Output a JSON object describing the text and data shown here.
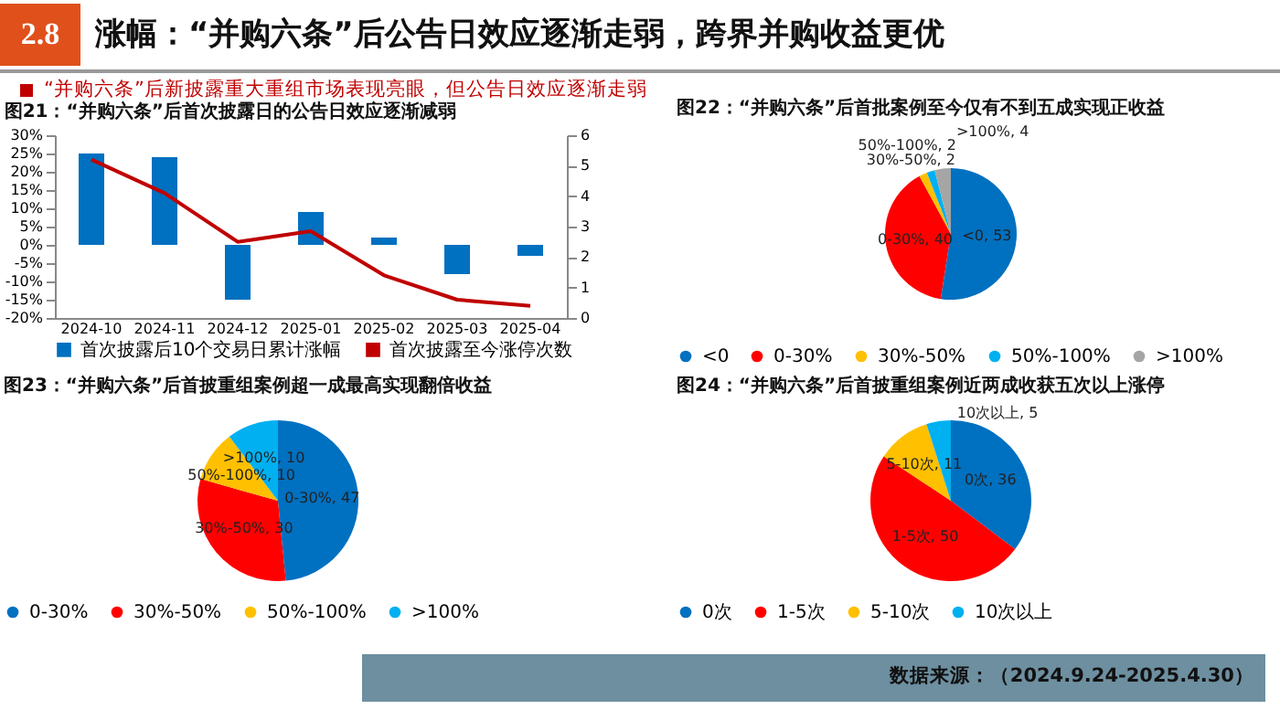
{
  "chart_data": [
    {
      "type": "other",
      "title": "涨幅：“并购六条”后公告日效应逐渐走弱，跨界并购收益更优",
      "subtitle": "“并购六条”后新披露重大重组市场表现亮眼，但公告日效应逐渐走弱",
      "annotations": [
        "2.8",
        "数据来源：（2024.9.24-2025.4.30）"
      ]
    },
    {
      "type": "bar",
      "title": "图21：“并购六条”后首次披露日的公告日效应逐渐减弱",
      "categories": [
        "2024-10",
        "2024-11",
        "2024-12",
        "2025-01",
        "2025-02",
        "2025-03",
        "2025-04"
      ],
      "series": [
        {
          "name": "首次披露后10个交易日累计涨幅",
          "type": "bar",
          "color": "#0070c0",
          "values": [
            25,
            24,
            -15,
            9,
            2,
            -8,
            -3
          ]
        },
        {
          "name": "首次披露至今涨停次数",
          "type": "line",
          "axis": "y2",
          "color": "#c00000",
          "values": [
            5.2,
            4.1,
            2.5,
            2.85,
            1.4,
            0.6,
            0.4
          ]
        }
      ],
      "ylim": [
        -20,
        30
      ],
      "yticks": [
        {
          "value": -20,
          "label": "-20%"
        },
        {
          "value": -15,
          "label": "-15%"
        },
        {
          "value": -10,
          "label": "-10%"
        },
        {
          "value": -5,
          "label": "-5%"
        },
        {
          "value": 0,
          "label": "0%"
        },
        {
          "value": 5,
          "label": "5%"
        },
        {
          "value": 10,
          "label": "10%"
        },
        {
          "value": 15,
          "label": "15%"
        },
        {
          "value": 20,
          "label": "20%"
        },
        {
          "value": 25,
          "label": "25%"
        },
        {
          "value": 30,
          "label": "30%"
        }
      ],
      "y2lim": [
        0,
        6
      ],
      "y2ticks": [
        0,
        1,
        2,
        3,
        4,
        5,
        6
      ],
      "legend": "bottom"
    },
    {
      "type": "pie",
      "title": "图22：“并购六条”后首批案例至今仅有不到五成实现正收益",
      "categories": [
        "<0",
        "0-30%",
        "30%-50%",
        "50%-100%",
        ">100%"
      ],
      "values": [
        53,
        40,
        2,
        2,
        4
      ],
      "colors": [
        "#0070c0",
        "#ff0000",
        "#ffc000",
        "#00b0f0",
        "#a5a5a5"
      ],
      "value_labels": [
        "<0, 53",
        "0-30%, 40",
        "30%-50%, 2",
        "50%-100%, 2",
        ">100%, 4"
      ],
      "legend": "bottom"
    },
    {
      "type": "pie",
      "title": "图23：“并购六条”后首披重组案例超一成最高实现翻倍收益",
      "categories": [
        "0-30%",
        "30%-50%",
        "50%-100%",
        ">100%"
      ],
      "values": [
        47,
        30,
        10,
        10
      ],
      "colors": [
        "#0070c0",
        "#ff0000",
        "#ffc000",
        "#00b0f0"
      ],
      "value_labels": [
        "0-30%, 47",
        "30%-50%, 30",
        "50%-100%, 10",
        ">100%, 10"
      ],
      "legend": "bottom"
    },
    {
      "type": "pie",
      "title": "图24：“并购六条”后首披重组案例近两成收获五次以上涨停",
      "categories": [
        "0次",
        "1-5次",
        "5-10次",
        "10次以上"
      ],
      "values": [
        36,
        50,
        11,
        5
      ],
      "colors": [
        "#0070c0",
        "#ff0000",
        "#ffc000",
        "#00b0f0"
      ],
      "value_labels": [
        "0次, 36",
        "1-5次, 50",
        "5-10次, 11",
        "10次以上, 5"
      ],
      "legend": "bottom"
    }
  ]
}
